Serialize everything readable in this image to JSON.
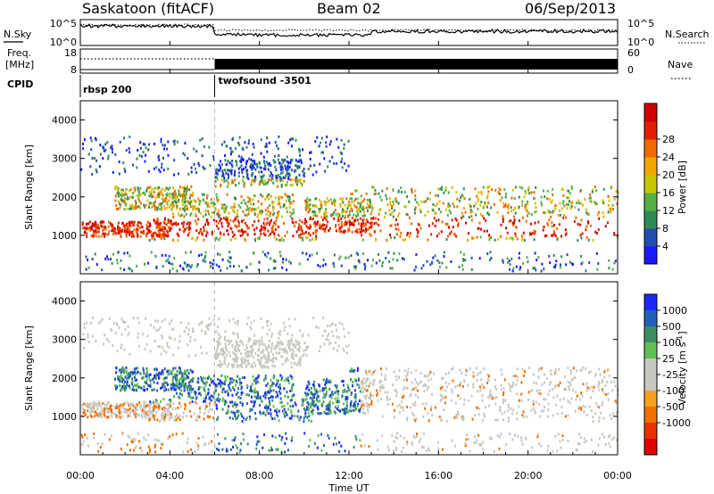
{
  "header": {
    "station": "Saskatoon (fitACF)",
    "beam": "Beam 02",
    "date": "06/Sep/2013"
  },
  "top_panels": {
    "nsky_label": "N.Sky",
    "nsearch_label": "N.Search",
    "nsky_ticks": [
      "10^5",
      "10^0"
    ],
    "nsearch_ticks": [
      "10^5",
      "10^0"
    ],
    "freq_label_line1": "Freq.",
    "freq_label_line2": "[MHz]",
    "freq_ticks": [
      "18",
      "8"
    ],
    "nave_label": "Nave",
    "nave_ticks": [
      "60",
      "0"
    ],
    "cpid_label": "CPID",
    "cpid_segments": [
      {
        "label": "rbsp 200",
        "start_hour": 0
      },
      {
        "label": "twofsound -3501",
        "start_hour": 6
      }
    ]
  },
  "chart_data": [
    {
      "type": "heatmap",
      "name": "power-panel",
      "ylabel": "Slant Range [km]",
      "x_range_hours": [
        0,
        24
      ],
      "ylim": [
        0,
        4500
      ],
      "y_ticks": [
        1000,
        2000,
        3000,
        4000
      ],
      "colorbar": {
        "label": "Power [dB]",
        "ticks": [
          "4",
          "8",
          "12",
          "16",
          "20",
          "24",
          "28"
        ],
        "colors": [
          "#1a1aff",
          "#1f4fb0",
          "#2e8b57",
          "#55b045",
          "#c8c800",
          "#f2a700",
          "#f06a00",
          "#e02000",
          "#d00000"
        ]
      }
    },
    {
      "type": "heatmap",
      "name": "velocity-panel",
      "ylabel": "Slant Range [km]",
      "x_range_hours": [
        0,
        24
      ],
      "ylim": [
        0,
        4500
      ],
      "y_ticks": [
        1000,
        2000,
        3000,
        4000
      ],
      "colorbar": {
        "label": "Velocity [m s",
        "label_sup": "-1",
        "label_end": "]",
        "ticks": [
          "1000",
          "500",
          "100",
          "25",
          "-25",
          "-100",
          "-500",
          "-1000"
        ],
        "colors": [
          "#1a2aff",
          "#2060b8",
          "#3a8f60",
          "#60c050",
          "#c8c8c0",
          "#c8c8c0",
          "#f6a020",
          "#f07000",
          "#e83000",
          "#e00000"
        ]
      }
    }
  ],
  "x_axis": {
    "ticks": [
      "00:00",
      "04:00",
      "08:00",
      "12:00",
      "16:00",
      "20:00",
      "00:00"
    ],
    "label": "Time UT"
  }
}
